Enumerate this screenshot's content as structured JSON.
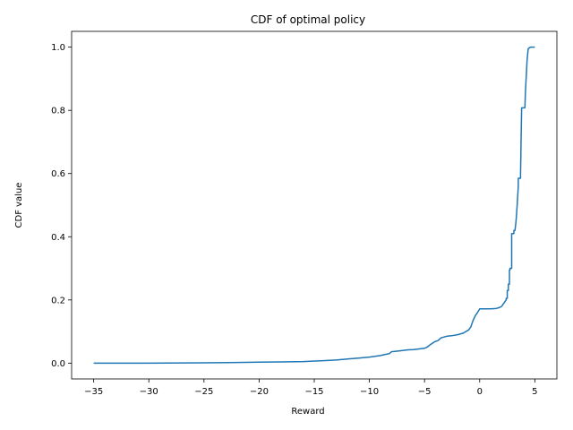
{
  "chart_data": {
    "type": "line",
    "title": "CDF of optimal policy",
    "xlabel": "Reward",
    "ylabel": "CDF value",
    "xlim": [
      -37.0,
      7.0
    ],
    "ylim": [
      -0.05,
      1.05
    ],
    "xticks": [
      -35,
      -30,
      -25,
      -20,
      -15,
      -10,
      -5,
      0,
      5
    ],
    "xtick_labels": [
      "−35",
      "−30",
      "−25",
      "−20",
      "−15",
      "−10",
      "−5",
      "0",
      "5"
    ],
    "yticks": [
      0.0,
      0.2,
      0.4,
      0.6,
      0.8,
      1.0
    ],
    "ytick_labels": [
      "0.0",
      "0.2",
      "0.4",
      "0.6",
      "0.8",
      "1.0"
    ],
    "grid": false,
    "legend": "none",
    "colors": {
      "line": "#1f77b4"
    },
    "series": [
      {
        "x": [
          -35,
          -30,
          -25,
          -22,
          -20,
          -18,
          -16,
          -14,
          -13,
          -12,
          -11,
          -10,
          -9,
          -8.5,
          -8.2,
          -8,
          -7.5,
          -7,
          -6.5,
          -6,
          -5.5,
          -5,
          -4.8,
          -4.5,
          -4.2,
          -4,
          -3.8,
          -3.5,
          -3.3,
          -3,
          -2.5,
          -2,
          -1.5,
          -1,
          -0.8,
          -0.6,
          -0.4,
          -0.2,
          0,
          0.5,
          1,
          1.5,
          1.8,
          2,
          2.1,
          2.2,
          2.3,
          2.4,
          2.4,
          2.5,
          2.5,
          2.6,
          2.6,
          2.7,
          2.7,
          2.75,
          2.75,
          2.9,
          2.9,
          3.1,
          3.1,
          3.2,
          3.3,
          3.4,
          3.5,
          3.5,
          3.7,
          3.75,
          3.8,
          3.8,
          4.1,
          4.15,
          4.3,
          4.4,
          4.6,
          5
        ],
        "y": [
          0.0,
          0.0,
          0.001,
          0.002,
          0.003,
          0.004,
          0.005,
          0.008,
          0.01,
          0.013,
          0.016,
          0.019,
          0.024,
          0.028,
          0.03,
          0.036,
          0.038,
          0.04,
          0.042,
          0.043,
          0.045,
          0.047,
          0.05,
          0.058,
          0.065,
          0.069,
          0.071,
          0.08,
          0.082,
          0.085,
          0.087,
          0.09,
          0.095,
          0.105,
          0.115,
          0.135,
          0.15,
          0.16,
          0.172,
          0.172,
          0.172,
          0.173,
          0.176,
          0.18,
          0.185,
          0.19,
          0.195,
          0.2,
          0.205,
          0.205,
          0.23,
          0.23,
          0.25,
          0.25,
          0.295,
          0.295,
          0.3,
          0.3,
          0.41,
          0.41,
          0.42,
          0.42,
          0.45,
          0.5,
          0.56,
          0.585,
          0.585,
          0.7,
          0.8,
          0.808,
          0.808,
          0.86,
          0.96,
          0.995,
          1.0,
          1.0
        ]
      }
    ]
  }
}
